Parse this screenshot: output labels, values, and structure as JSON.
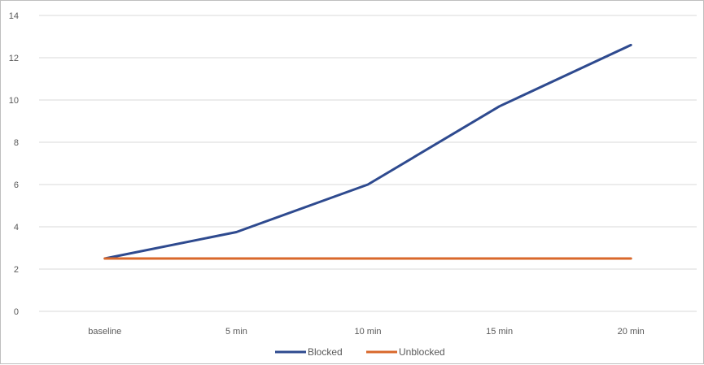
{
  "chart_data": {
    "type": "line",
    "categories": [
      "baseline",
      "5 min",
      "10 min",
      "15 min",
      "20 min"
    ],
    "series": [
      {
        "name": "Blocked",
        "values": [
          2.5,
          3.75,
          6.0,
          9.7,
          12.6
        ],
        "color": "#2e4a8f"
      },
      {
        "name": "Unblocked",
        "values": [
          2.5,
          2.5,
          2.5,
          2.5,
          2.5
        ],
        "color": "#d9682b"
      }
    ],
    "ylim": [
      0,
      14
    ],
    "yticks": [
      0,
      2,
      4,
      6,
      8,
      10,
      12,
      14
    ],
    "grid": true,
    "legend": "bottom",
    "title": "",
    "xlabel": "",
    "ylabel": ""
  }
}
